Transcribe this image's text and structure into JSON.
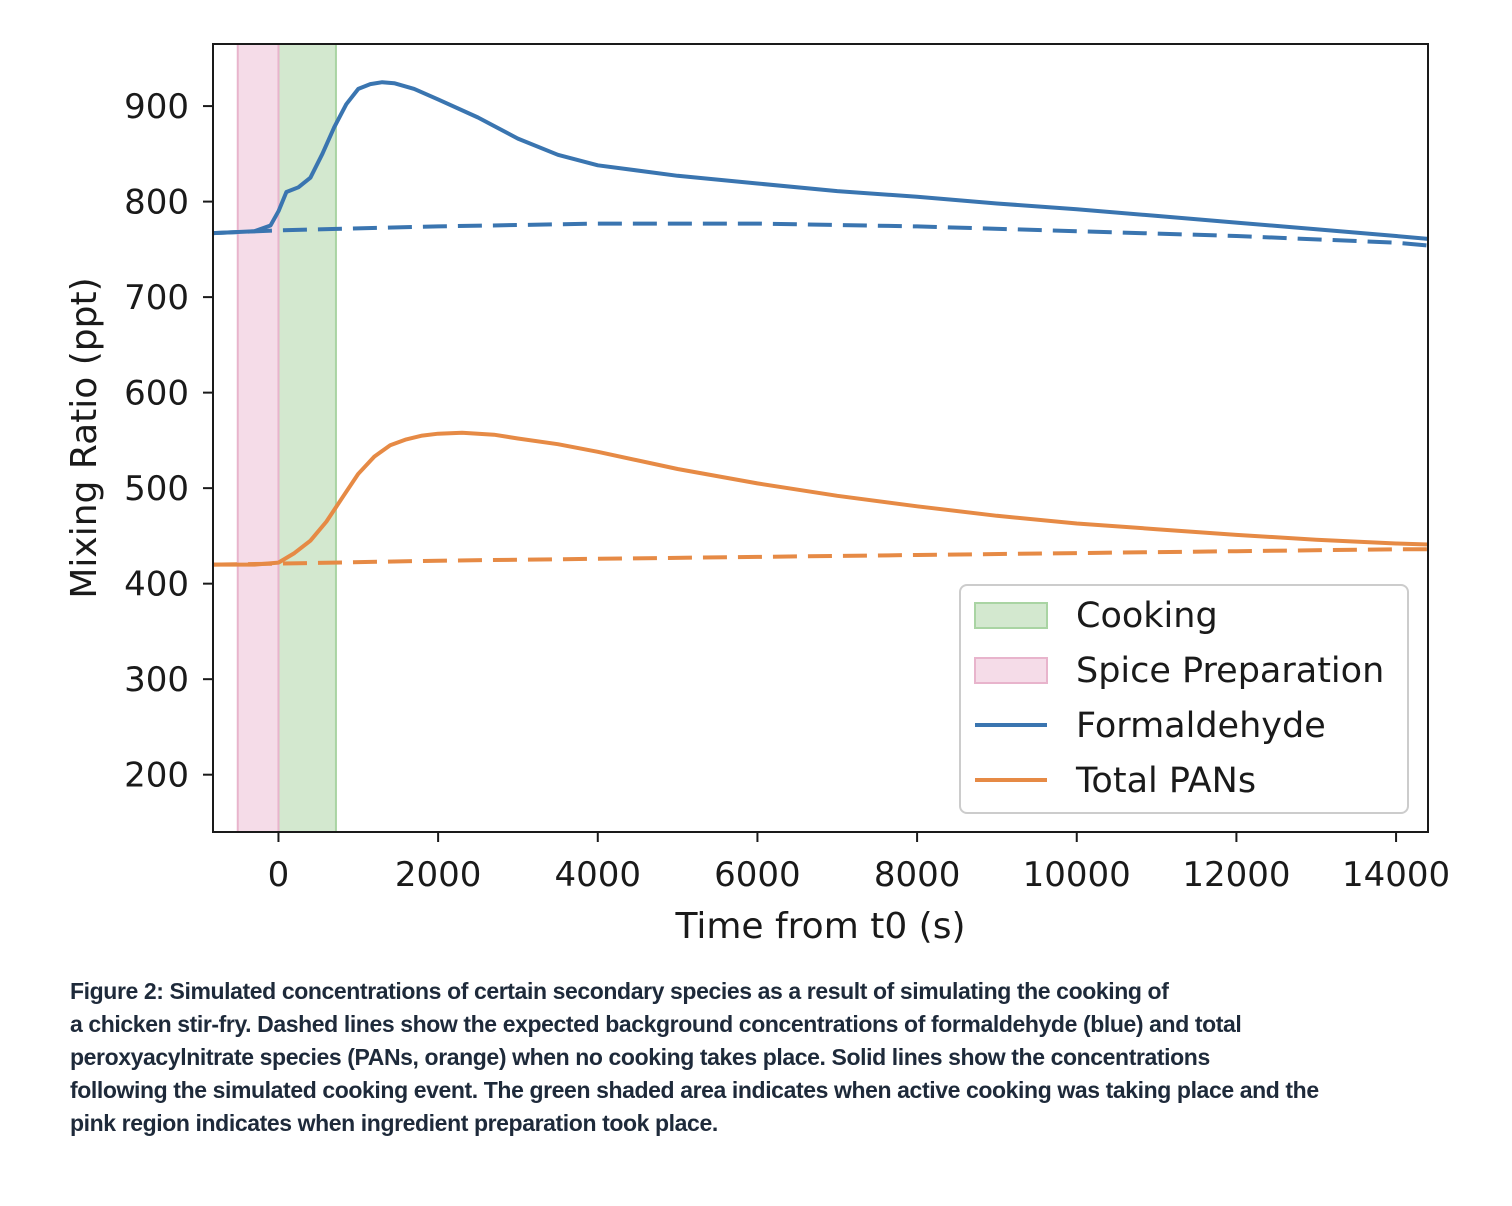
{
  "chart_data": {
    "type": "line",
    "title": "",
    "xlabel": "Time from t0 (s)",
    "ylabel": "Mixing Ratio (ppt)",
    "xlim": [
      -820,
      14400
    ],
    "ylim": [
      140,
      965
    ],
    "xticks": [
      0,
      2000,
      4000,
      6000,
      8000,
      10000,
      12000,
      14000
    ],
    "xtick_labels": [
      "0",
      "2000",
      "4000",
      "6000",
      "8000",
      "10000",
      "12000",
      "14000"
    ],
    "yticks": [
      200,
      300,
      400,
      500,
      600,
      700,
      800,
      900
    ],
    "ytick_labels": [
      "200",
      "300",
      "400",
      "500",
      "600",
      "700",
      "800",
      "900"
    ],
    "grid": false,
    "legend_position": "lower-right",
    "shaded_regions": [
      {
        "name": "Cooking",
        "x_start": 0,
        "x_end": 720,
        "color": "#d3e8cf",
        "edge": "#a9d4a3"
      },
      {
        "name": "Spice Preparation",
        "x_start": -510,
        "x_end": 0,
        "color": "#f5dce8",
        "edge": "#e8b4cc"
      }
    ],
    "series": [
      {
        "name": "Formaldehyde",
        "color": "#3a75b0",
        "style": "solid",
        "points": [
          [
            -820,
            767
          ],
          [
            -300,
            769
          ],
          [
            -100,
            775
          ],
          [
            0,
            790
          ],
          [
            100,
            810
          ],
          [
            250,
            815
          ],
          [
            400,
            825
          ],
          [
            550,
            850
          ],
          [
            700,
            878
          ],
          [
            850,
            902
          ],
          [
            1000,
            918
          ],
          [
            1150,
            923
          ],
          [
            1300,
            925
          ],
          [
            1450,
            924
          ],
          [
            1700,
            918
          ],
          [
            2000,
            907
          ],
          [
            2500,
            888
          ],
          [
            3000,
            866
          ],
          [
            3500,
            849
          ],
          [
            4000,
            838
          ],
          [
            5000,
            827
          ],
          [
            6000,
            819
          ],
          [
            7000,
            811
          ],
          [
            8000,
            805
          ],
          [
            9000,
            798
          ],
          [
            10000,
            792
          ],
          [
            11000,
            785
          ],
          [
            12000,
            778
          ],
          [
            13000,
            771
          ],
          [
            14000,
            764
          ],
          [
            14400,
            761
          ]
        ]
      },
      {
        "name": "Formaldehyde background",
        "color": "#3a75b0",
        "style": "dashed",
        "points": [
          [
            -820,
            767
          ],
          [
            0,
            770
          ],
          [
            2000,
            774
          ],
          [
            4000,
            777
          ],
          [
            6000,
            777
          ],
          [
            8000,
            774
          ],
          [
            10000,
            769
          ],
          [
            12000,
            764
          ],
          [
            14000,
            757
          ],
          [
            14400,
            754
          ]
        ]
      },
      {
        "name": "Total PANs",
        "color": "#e68a45",
        "style": "solid",
        "points": [
          [
            -820,
            420
          ],
          [
            -300,
            420
          ],
          [
            0,
            422
          ],
          [
            200,
            432
          ],
          [
            400,
            445
          ],
          [
            600,
            465
          ],
          [
            800,
            490
          ],
          [
            1000,
            515
          ],
          [
            1200,
            533
          ],
          [
            1400,
            545
          ],
          [
            1600,
            551
          ],
          [
            1800,
            555
          ],
          [
            2000,
            557
          ],
          [
            2300,
            558
          ],
          [
            2700,
            556
          ],
          [
            3000,
            552
          ],
          [
            3500,
            546
          ],
          [
            4000,
            538
          ],
          [
            5000,
            520
          ],
          [
            6000,
            505
          ],
          [
            7000,
            492
          ],
          [
            8000,
            481
          ],
          [
            9000,
            471
          ],
          [
            10000,
            463
          ],
          [
            11000,
            457
          ],
          [
            12000,
            451
          ],
          [
            13000,
            446
          ],
          [
            14000,
            442
          ],
          [
            14400,
            441
          ]
        ]
      },
      {
        "name": "Total PANs background",
        "color": "#e68a45",
        "style": "dashed",
        "points": [
          [
            -820,
            420
          ],
          [
            0,
            421
          ],
          [
            2000,
            424
          ],
          [
            4000,
            426
          ],
          [
            6000,
            428
          ],
          [
            8000,
            430
          ],
          [
            10000,
            432
          ],
          [
            12000,
            434
          ],
          [
            14000,
            436
          ],
          [
            14400,
            436
          ]
        ]
      }
    ],
    "legend": [
      {
        "label": "Cooking",
        "kind": "patch",
        "color": "#d3e8cf",
        "edge": "#a9d4a3"
      },
      {
        "label": "Spice Preparation",
        "kind": "patch",
        "color": "#f5dce8",
        "edge": "#e8b4cc"
      },
      {
        "label": "Formaldehyde",
        "kind": "line",
        "color": "#3a75b0"
      },
      {
        "label": "Total PANs",
        "kind": "line",
        "color": "#e68a45"
      }
    ]
  },
  "caption": {
    "lines": [
      "Figure 2: Simulated concentrations of certain secondary species as a result of simulating the cooking of",
      "a chicken stir-fry. Dashed lines show the expected background concentrations of formaldehyde (blue) and total",
      "peroxyacylnitrate species (PANs, orange) when no cooking takes place. Solid lines show the concentrations",
      "following the simulated cooking event. The green shaded area indicates when active cooking was taking place and the",
      "pink region indicates when ingredient preparation took place."
    ]
  }
}
